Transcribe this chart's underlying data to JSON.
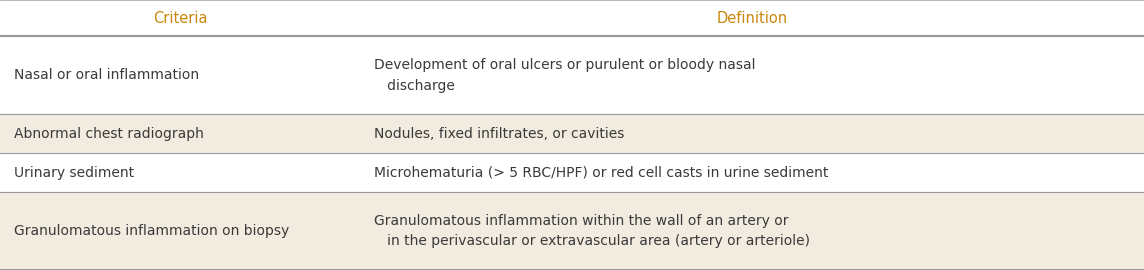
{
  "header": [
    "Criteria",
    "Definition"
  ],
  "header_color": "#C8860A",
  "rows": [
    {
      "criteria": "Nasal or oral inflammation",
      "definition": "Development of oral ulcers or purulent or bloody nasal\n   discharge",
      "bg": "#FFFFFF",
      "row_weight": 2
    },
    {
      "criteria": "Abnormal chest radiograph",
      "definition": "Nodules, fixed infiltrates, or cavities",
      "bg": "#F2EBE0",
      "row_weight": 1
    },
    {
      "criteria": "Urinary sediment",
      "definition": "Microhematuria (> 5 RBC/HPF) or red cell casts in urine sediment",
      "bg": "#FFFFFF",
      "row_weight": 1
    },
    {
      "criteria": "Granulomatous inflammation on biopsy",
      "definition": "Granulomatous inflammation within the wall of an artery or\n   in the perivascular or extravascular area (artery or arteriole)",
      "bg": "#F2EBE0",
      "row_weight": 2
    }
  ],
  "col_split": 0.315,
  "text_color": "#3a3a3a",
  "border_color": "#999999",
  "figure_bg": "#FFFFFF",
  "fontsize": 10.0,
  "header_fontsize": 10.5,
  "fig_width": 11.44,
  "fig_height": 2.7,
  "dpi": 100
}
